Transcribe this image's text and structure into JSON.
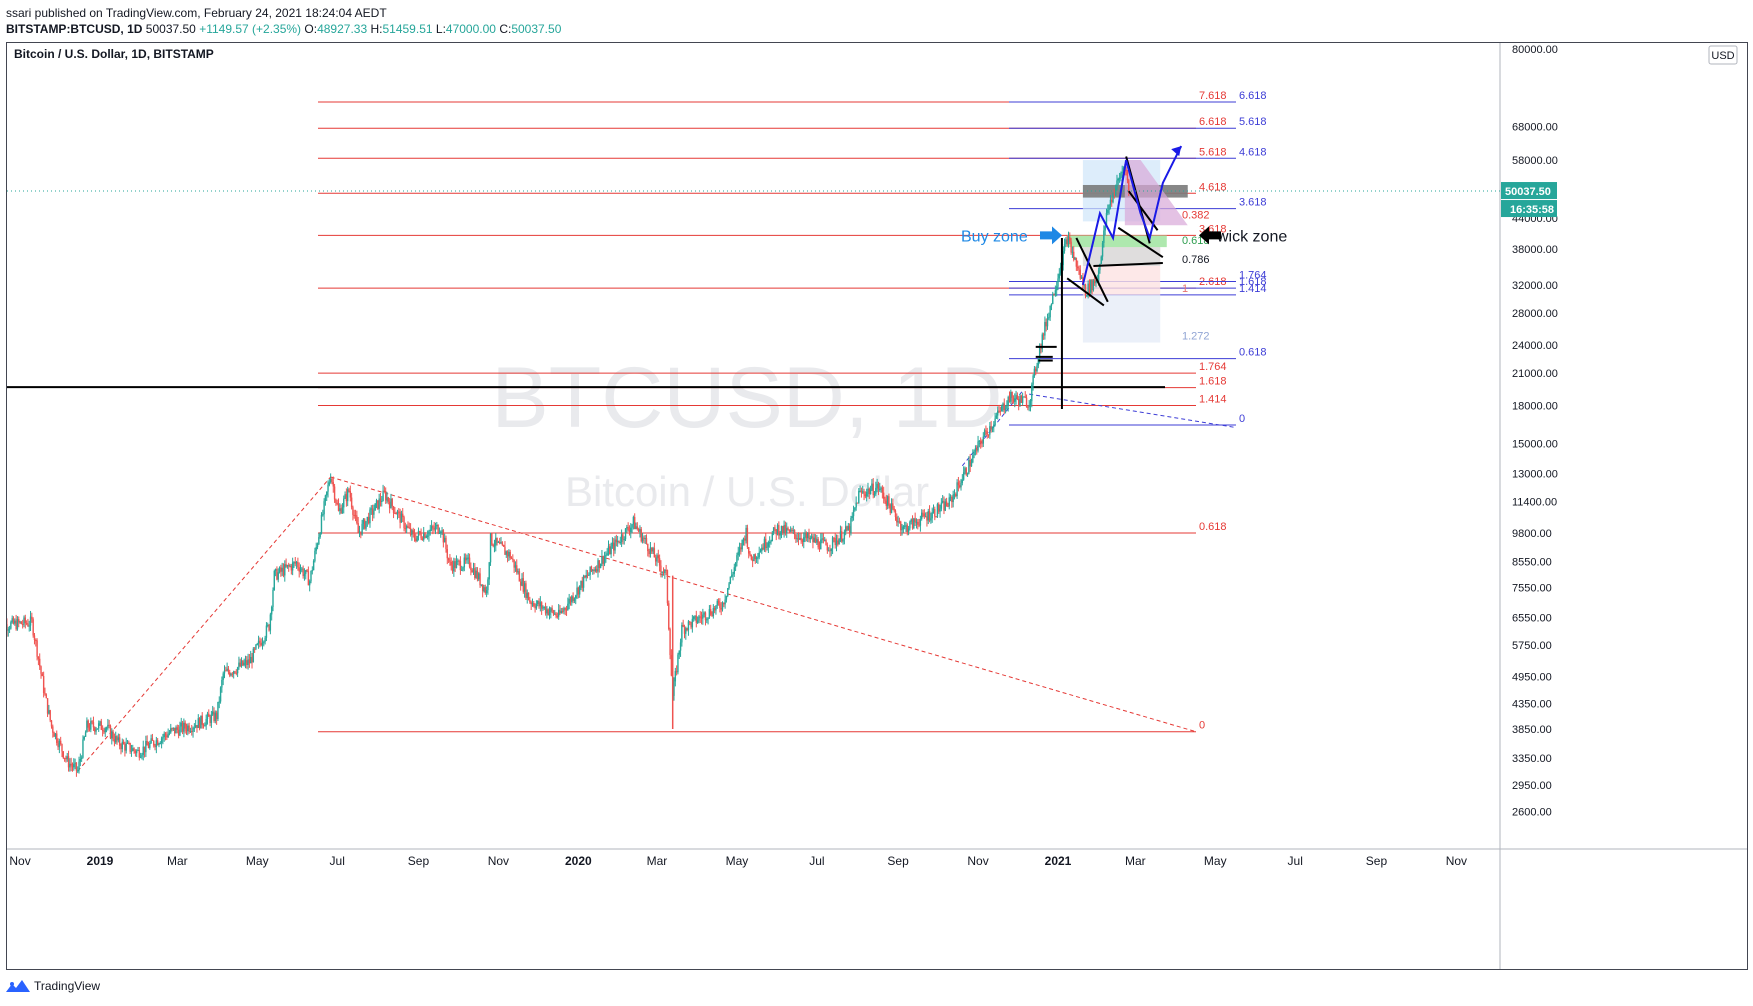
{
  "header": {
    "published_line": "ssari published on TradingView.com, February 24, 2021 18:24:04 AEDT",
    "symbol": "BITSTAMP:BTCUSD, 1D",
    "last": "50037.50",
    "change": "+1149.57 (+2.35%)",
    "o_label": "O:",
    "o_value": "48927.33",
    "h_label": "H:",
    "h_value": "51459.51",
    "l_label": "L:",
    "l_value": "47000.00",
    "c_label": "C:",
    "c_value": "50037.50"
  },
  "footer": {
    "brand": "TradingView"
  },
  "chart_data": {
    "type": "candlestick",
    "title": "Bitcoin / U.S. Dollar, 1D, BITSTAMP",
    "watermark_symbol": "BTCUSD, 1D",
    "watermark_name": "Bitcoin / U.S. Dollar",
    "currency_label": "USD",
    "price_scale": "log",
    "ylim": [
      2200,
      80000
    ],
    "top_tick_partial": "80000.00",
    "y_ticks": [
      "68000.00",
      "58000.00",
      "44000.00",
      "38000.00",
      "32000.00",
      "28000.00",
      "24000.00",
      "21000.00",
      "18000.00",
      "15000.00",
      "13000.00",
      "11400.00",
      "9800.00",
      "8550.00",
      "7550.00",
      "6550.00",
      "5750.00",
      "4950.00",
      "4350.00",
      "3850.00",
      "3350.00",
      "2950.00",
      "2600.00"
    ],
    "x_ticks": [
      "Nov",
      "2019",
      "Mar",
      "May",
      "Jul",
      "Sep",
      "Nov",
      "2020",
      "Mar",
      "May",
      "Jul",
      "Sep",
      "Nov",
      "2021",
      "Mar",
      "May",
      "Jul",
      "Sep",
      "Nov"
    ],
    "bold_x_ticks": [
      "2019",
      "2020",
      "2021"
    ],
    "last_price_label": "50037.50",
    "countdown_label": "16:35:58",
    "last_price_color": "#26a69a",
    "up_color": "#26a69a",
    "down_color": "#ef5350",
    "price_path": [
      [
        "2018-10-15",
        6300
      ],
      [
        "2018-11-10",
        6400
      ],
      [
        "2018-11-14",
        5600
      ],
      [
        "2018-11-20",
        4500
      ],
      [
        "2018-11-25",
        3900
      ],
      [
        "2018-12-07",
        3300
      ],
      [
        "2018-12-15",
        3150
      ],
      [
        "2018-12-22",
        3900
      ],
      [
        "2019-01-05",
        3900
      ],
      [
        "2019-01-15",
        3600
      ],
      [
        "2019-01-30",
        3450
      ],
      [
        "2019-02-10",
        3600
      ],
      [
        "2019-02-24",
        3800
      ],
      [
        "2019-03-10",
        3900
      ],
      [
        "2019-03-31",
        4100
      ],
      [
        "2019-04-05",
        5000
      ],
      [
        "2019-04-25",
        5300
      ],
      [
        "2019-05-10",
        6300
      ],
      [
        "2019-05-14",
        8000
      ],
      [
        "2019-05-31",
        8500
      ],
      [
        "2019-06-10",
        7800
      ],
      [
        "2019-06-26",
        13000
      ],
      [
        "2019-07-02",
        10800
      ],
      [
        "2019-07-10",
        12000
      ],
      [
        "2019-07-17",
        9800
      ],
      [
        "2019-08-06",
        11800
      ],
      [
        "2019-08-28",
        9600
      ],
      [
        "2019-09-18",
        10100
      ],
      [
        "2019-09-25",
        8400
      ],
      [
        "2019-10-10",
        8500
      ],
      [
        "2019-10-23",
        7400
      ],
      [
        "2019-10-26",
        9500
      ],
      [
        "2019-11-10",
        8800
      ],
      [
        "2019-11-25",
        7100
      ],
      [
        "2019-12-17",
        6600
      ],
      [
        "2020-01-08",
        8000
      ],
      [
        "2020-01-20",
        8700
      ],
      [
        "2020-02-12",
        10300
      ],
      [
        "2020-03-08",
        8000
      ],
      [
        "2020-03-12",
        5000
      ],
      [
        "2020-03-13",
        4500
      ],
      [
        "2020-03-20",
        6200
      ],
      [
        "2020-04-20",
        7000
      ],
      [
        "2020-05-08",
        9900
      ],
      [
        "2020-05-11",
        8600
      ],
      [
        "2020-06-01",
        10000
      ],
      [
        "2020-07-10",
        9200
      ],
      [
        "2020-07-26",
        10000
      ],
      [
        "2020-08-02",
        11800
      ],
      [
        "2020-08-17",
        12200
      ],
      [
        "2020-09-05",
        10000
      ],
      [
        "2020-10-10",
        11300
      ],
      [
        "2020-11-05",
        15500
      ],
      [
        "2020-11-25",
        18700
      ],
      [
        "2020-12-10",
        18300
      ],
      [
        "2020-12-17",
        23000
      ],
      [
        "2021-01-08",
        40000
      ],
      [
        "2021-01-22",
        31000
      ],
      [
        "2021-01-31",
        33000
      ],
      [
        "2021-02-08",
        46000
      ],
      [
        "2021-02-21",
        57000
      ],
      [
        "2021-02-24",
        50037.5
      ]
    ],
    "fib_left": {
      "levels": [
        {
          "label": "7.618",
          "price": 76500
        },
        {
          "label": "6.618",
          "price": 67500
        },
        {
          "label": "5.618",
          "price": 58500
        },
        {
          "label": "4.618",
          "price": 49500
        },
        {
          "label": "3.618",
          "price": 40500
        },
        {
          "label": "2.618",
          "price": 31500
        },
        {
          "label": "1.764",
          "price": 21000
        },
        {
          "label": "1.618",
          "price": 19600
        },
        {
          "label": "1.414",
          "price": 18000
        },
        {
          "label": "0.618",
          "price": 9800
        },
        {
          "label": "0",
          "price": 3800
        }
      ],
      "color": "#e53935"
    },
    "fib_right": {
      "levels": [
        {
          "label": "6.618",
          "price": 76500
        },
        {
          "label": "5.618",
          "price": 67500
        },
        {
          "label": "4.618",
          "price": 58500
        },
        {
          "label": "3.618",
          "price": 46000
        },
        {
          "label": "1.764",
          "price": 32500
        },
        {
          "label": "1.618",
          "price": 31500
        },
        {
          "label": "1.414",
          "price": 30500
        },
        {
          "label": "0.618",
          "price": 22500
        },
        {
          "label": "0",
          "price": 16400
        }
      ],
      "color": "#3d3dd6"
    },
    "retracement_labels": [
      {
        "label": "0.382",
        "price": 43300,
        "color": "#e53935"
      },
      {
        "label": "0.618",
        "price": 38300,
        "color": "#2e9e4f"
      },
      {
        "label": "0.786",
        "price": 35000,
        "color": "#131722"
      },
      {
        "label": "1",
        "price": 30500,
        "color": "#e57373"
      },
      {
        "label": "1.272",
        "price": 24300,
        "color": "#90a4d4"
      }
    ],
    "annotations": [
      {
        "text": "Buy zone",
        "color": "#1e88e5"
      },
      {
        "text": "wick zone",
        "color": "#131722"
      }
    ],
    "resistance_price": 19650
  }
}
